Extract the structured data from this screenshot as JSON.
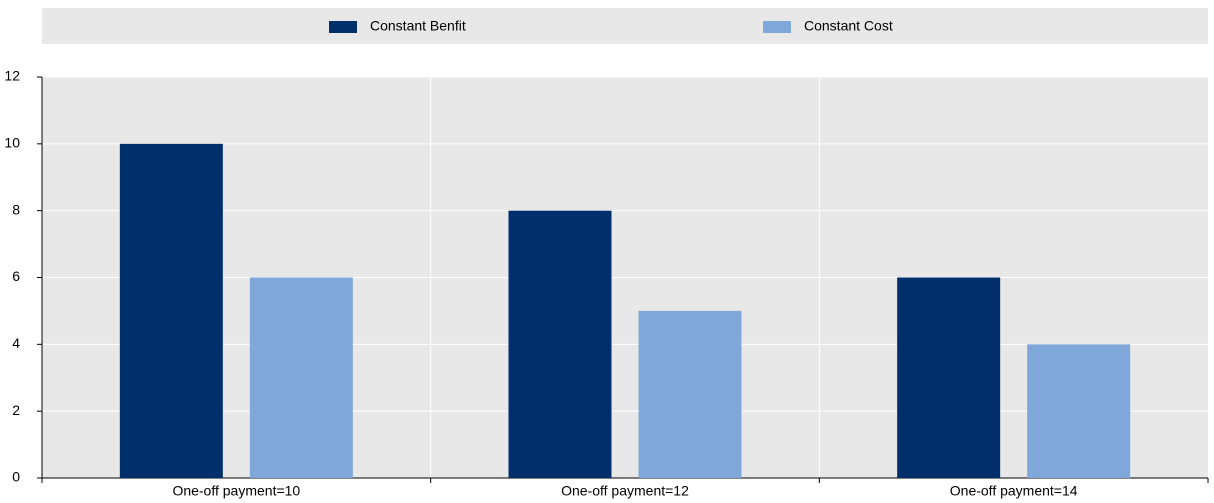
{
  "chart_data": {
    "type": "bar",
    "categories": [
      "One-off payment=10",
      "One-off payment=12",
      "One-off payment=14"
    ],
    "series": [
      {
        "name": "Constant Benfit",
        "color": "#002f6c",
        "values": [
          10,
          8,
          6
        ]
      },
      {
        "name": "Constant Cost",
        "color": "#7fa7d9",
        "values": [
          6,
          5,
          4
        ]
      }
    ],
    "ylim": [
      0,
      12
    ],
    "yticks": [
      0,
      2,
      4,
      6,
      8,
      10,
      12
    ],
    "grid": true
  }
}
